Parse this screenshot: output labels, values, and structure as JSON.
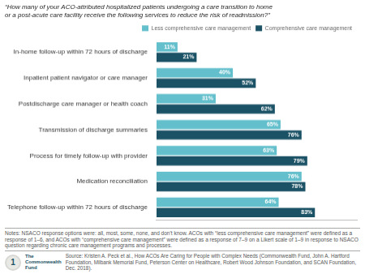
{
  "chart_data": {
    "type": "bar",
    "orientation": "horizontal",
    "title": "“How many of your ACO-attributed hospitalized patients undergoing a care transition to home\nor a post-acute care facility receive the following services to reduce the risk of readmission?”",
    "categories": [
      "In-home follow-up within 72 hours of discharge",
      "Inpatient patient navigator or care manager",
      "Postdischarge care manager or health coach",
      "Transmission of discharge summaries",
      "Process for timely follow-up with provider",
      "Medication reconciliation",
      "Telephone follow-up within 72 hours of discharge"
    ],
    "series": [
      {
        "name": "Less comprehensive care management",
        "color": "#62bfcb",
        "values": [
          11,
          40,
          31,
          65,
          63,
          76,
          64
        ],
        "value_labels": [
          "11%",
          "40%",
          "31%",
          "65%",
          "63%",
          "76%",
          "64%"
        ]
      },
      {
        "name": "Comprehensive care management",
        "color": "#1b5265",
        "values": [
          21,
          52,
          62,
          76,
          79,
          78,
          83
        ],
        "value_labels": [
          "21%",
          "52%",
          "62%",
          "76%",
          "79%",
          "78%",
          "83%"
        ]
      }
    ],
    "xlim": [
      0,
      105
    ],
    "grid": false,
    "legend": "upper right",
    "data_labels": true,
    "tick_labels": "y",
    "annotations": [
      "Notes: NSACO response options were: all, most, some, none, and don’t know. ACOs with “less comprehensive care management” were defined as a response of 1–6, and ACOs with “comprehensive\ncare management” were defined as a response of 7–9 on a Likert scale of 1–9 in response to NSACO question regarding chronic care management programs and processes.",
      "1",
      "The\nCommonwealth\nFund",
      "Source: Kristen A. Peck et al., How ACOs Are Caring for People with Complex Needs (Commonwealth Fund, John A. Hartford Foundation, Milbank\nMemorial Fund, Peterson Center on Healthcare, Robert Wood Johnson Foundation, and SCAN Foundation, Dec. 2018)."
    ]
  }
}
